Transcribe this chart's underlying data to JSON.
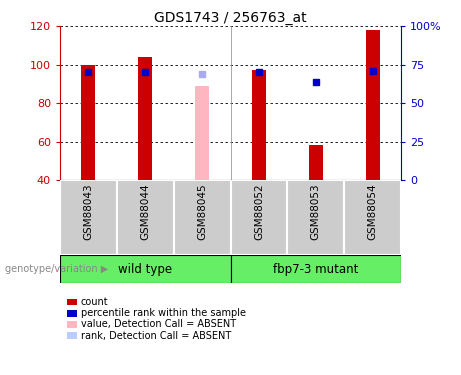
{
  "title": "GDS1743 / 256763_at",
  "samples": [
    "GSM88043",
    "GSM88044",
    "GSM88045",
    "GSM88052",
    "GSM88053",
    "GSM88054"
  ],
  "ylim_left": [
    40,
    120
  ],
  "ylim_right": [
    0,
    100
  ],
  "yticks_left": [
    40,
    60,
    80,
    100,
    120
  ],
  "yticks_right": [
    0,
    25,
    50,
    75,
    100
  ],
  "bar_values": [
    100,
    104,
    89,
    97,
    58,
    118
  ],
  "bar_colors": [
    "#CC0000",
    "#CC0000",
    "#FFB6C1",
    "#CC0000",
    "#CC0000",
    "#CC0000"
  ],
  "rank_values": [
    70,
    70,
    69,
    70,
    64,
    71
  ],
  "rank_colors": [
    "#0000CC",
    "#0000CC",
    "#AAAAEE",
    "#0000CC",
    "#0000CC",
    "#0000CC"
  ],
  "bar_width": 0.25,
  "genotype_label": "genotype/variation",
  "wt_label": "wild type",
  "mut_label": "fbp7-3 mutant",
  "legend_items": [
    {
      "color": "#CC0000",
      "label": "count"
    },
    {
      "color": "#0000CC",
      "label": "percentile rank within the sample"
    },
    {
      "color": "#FFB6C1",
      "label": "value, Detection Call = ABSENT"
    },
    {
      "color": "#BBCCFF",
      "label": "rank, Detection Call = ABSENT"
    }
  ],
  "left_ylabel_color": "#CC0000",
  "right_ylabel_color": "#0000CC",
  "sample_box_color": "#CCCCCC",
  "group_box_color": "#66EE66",
  "n_wt": 3,
  "n_mut": 3
}
